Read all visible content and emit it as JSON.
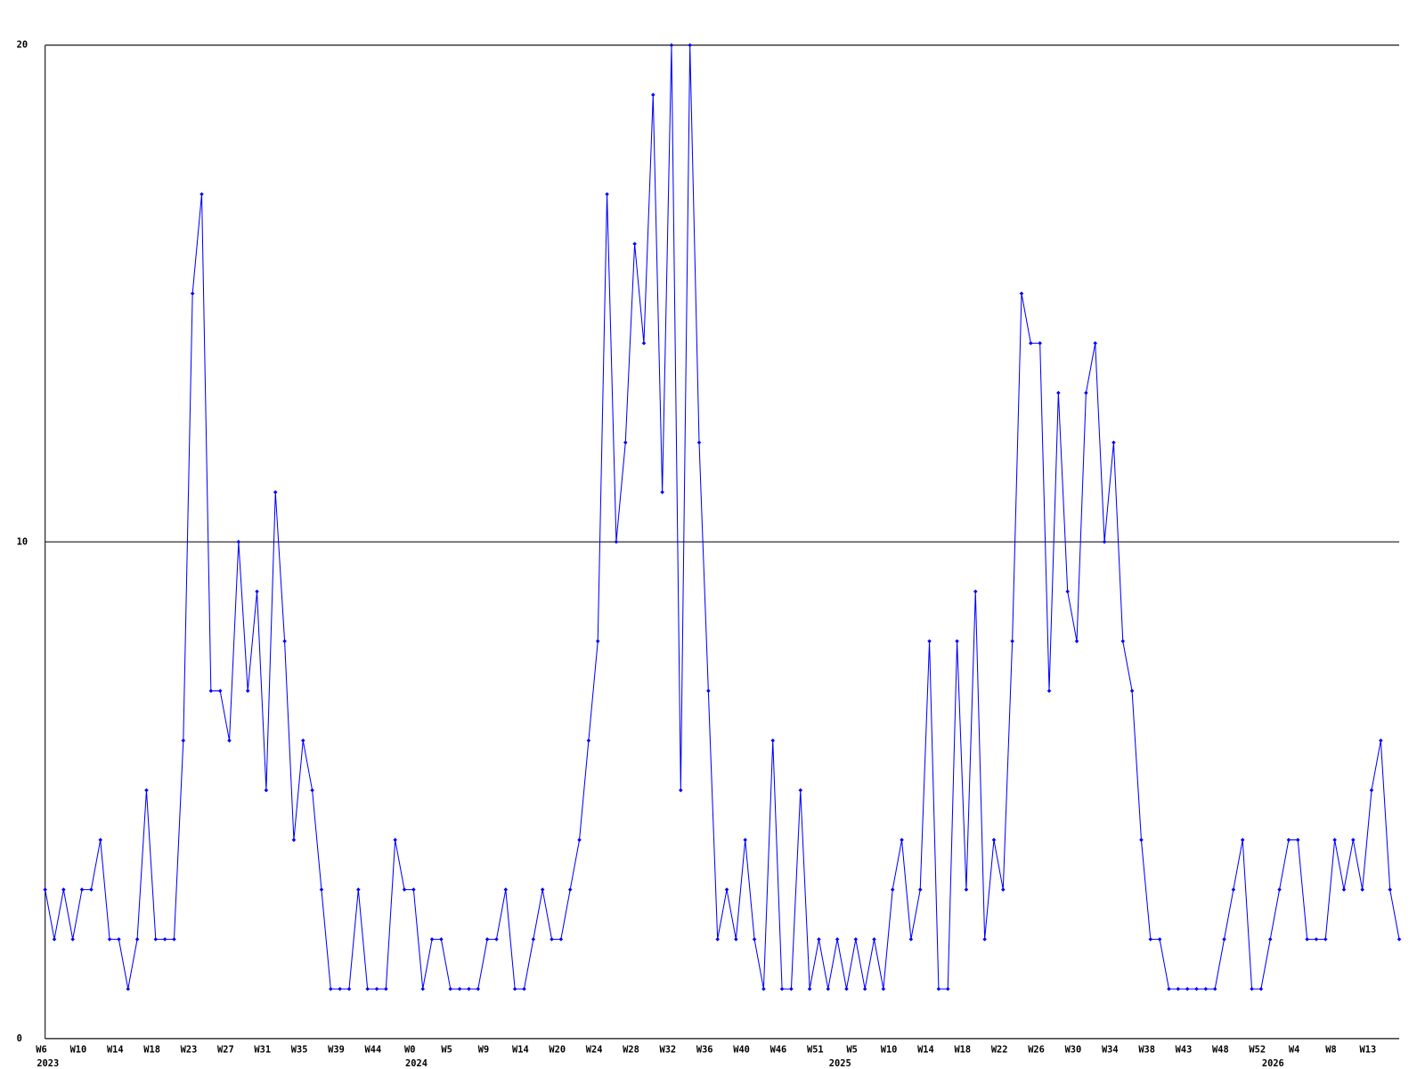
{
  "chart_data": {
    "type": "line",
    "categories": [
      "W6",
      null,
      null,
      null,
      "W10",
      null,
      null,
      null,
      "W14",
      null,
      null,
      null,
      "W18",
      null,
      null,
      null,
      "W23",
      null,
      null,
      null,
      "W27",
      null,
      null,
      null,
      "W31",
      null,
      null,
      null,
      "W35",
      null,
      null,
      null,
      "W39",
      null,
      null,
      null,
      "W44",
      null,
      null,
      null,
      "W0",
      null,
      null,
      null,
      "W5",
      null,
      null,
      null,
      "W9",
      null,
      null,
      null,
      "W14",
      null,
      null,
      null,
      "W20",
      null,
      null,
      null,
      "W24",
      null,
      null,
      null,
      "W28",
      null,
      null,
      null,
      "W32",
      null,
      null,
      null,
      "W36",
      null,
      null,
      null,
      "W40",
      null,
      null,
      null,
      "W46",
      null,
      null,
      null,
      "W51",
      null,
      null,
      null,
      "W5",
      null,
      null,
      null,
      "W10",
      null,
      null,
      null,
      "W14",
      null,
      null,
      null,
      "W18",
      null,
      null,
      null,
      "W22",
      null,
      null,
      null,
      "W26",
      null,
      null,
      null,
      "W30",
      null,
      null,
      null,
      "W34",
      null,
      null,
      null,
      "W38",
      null,
      null,
      null,
      "W43",
      null,
      null,
      null,
      "W48",
      null,
      null,
      null,
      "W52",
      null,
      null,
      null,
      "W4",
      null,
      null,
      null,
      "W8",
      null,
      null,
      null,
      "W13",
      null,
      null,
      null
    ],
    "year_labels": [
      "2023",
      null,
      null,
      null,
      null,
      null,
      null,
      null,
      null,
      null,
      null,
      null,
      null,
      null,
      null,
      null,
      null,
      null,
      null,
      null,
      null,
      null,
      null,
      null,
      null,
      null,
      null,
      null,
      null,
      null,
      null,
      null,
      null,
      null,
      null,
      null,
      null,
      null,
      null,
      null,
      "2024",
      null,
      null,
      null,
      null,
      null,
      null,
      null,
      null,
      null,
      null,
      null,
      null,
      null,
      null,
      null,
      null,
      null,
      null,
      null,
      null,
      null,
      null,
      null,
      null,
      null,
      null,
      null,
      null,
      null,
      null,
      null,
      null,
      null,
      null,
      null,
      null,
      null,
      null,
      null,
      null,
      null,
      null,
      null,
      null,
      null,
      "2025",
      null,
      null,
      null,
      null,
      null,
      null,
      null,
      null,
      null,
      null,
      null,
      null,
      null,
      null,
      null,
      null,
      null,
      null,
      null,
      null,
      null,
      null,
      null,
      null,
      null,
      null,
      null,
      null,
      null,
      null,
      null,
      null,
      null,
      null,
      null,
      null,
      null,
      null,
      null,
      null,
      null,
      null,
      null,
      null,
      null,
      null,
      "2026",
      null,
      null,
      null,
      null,
      null,
      null,
      null,
      null,
      null,
      null,
      null,
      null,
      null,
      null
    ],
    "series": [
      {
        "color": "#0000ff",
        "values": [
          3,
          2,
          3,
          2,
          3,
          3,
          4,
          2,
          2,
          1,
          2,
          5,
          2,
          2,
          2,
          6,
          15,
          17,
          7,
          7,
          6,
          10,
          7,
          9,
          5,
          11,
          8,
          4,
          6,
          5,
          3,
          1,
          1,
          1,
          3,
          1,
          1,
          1,
          4,
          3,
          3,
          1,
          2,
          2,
          1,
          1,
          1,
          1,
          2,
          2,
          3,
          1,
          1,
          2,
          3,
          2,
          2,
          3,
          4,
          6,
          8,
          17,
          10,
          12,
          16,
          14,
          19,
          11,
          20,
          5,
          20,
          12,
          7,
          2,
          3,
          2,
          4,
          2,
          1,
          6,
          1,
          1,
          5,
          1,
          2,
          1,
          2,
          1,
          2,
          1,
          2,
          1,
          3,
          4,
          2,
          3,
          8,
          1,
          1,
          8,
          3,
          9,
          2,
          4,
          3,
          8,
          15,
          14,
          14,
          7,
          13,
          9,
          8,
          13,
          14,
          10,
          12,
          8,
          7,
          4,
          2,
          2,
          1,
          1,
          1,
          1,
          1,
          1,
          2,
          3,
          4,
          1,
          1,
          2,
          3,
          4,
          4,
          2,
          2,
          2,
          4,
          3,
          4,
          3,
          5,
          6,
          3,
          2
        ]
      }
    ],
    "ylim": [
      0,
      20
    ],
    "yticks": [
      0,
      10,
      20
    ],
    "grid": true
  }
}
